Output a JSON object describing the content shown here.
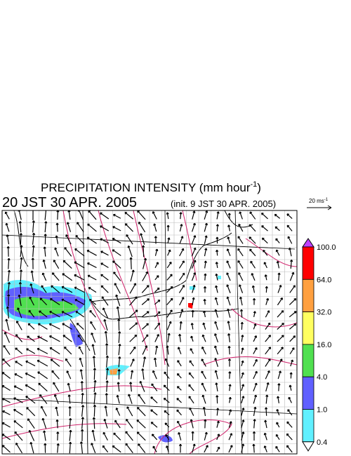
{
  "header": {
    "title": "PRECIPITATION INTENSITY (mm hour",
    "title_sup": "-1",
    "title_end": ")",
    "time": "20 JST 30 APR. 2005",
    "init": "(init. 9 JST 30 APR. 2005)"
  },
  "vector_scale": {
    "label": "20 ms",
    "label_sup": "-1"
  },
  "colorbar": {
    "levels": [
      {
        "label": "100.0",
        "color": "#ff0000"
      },
      {
        "label": "64.0",
        "color": "#ffa040"
      },
      {
        "label": "32.0",
        "color": "#ffff60"
      },
      {
        "label": "16.0",
        "color": "#50e050"
      },
      {
        "label": "4.0",
        "color": "#6060ff"
      },
      {
        "label": "1.0",
        "color": "#60f0ff"
      },
      {
        "label": "0.4",
        "color": null
      }
    ],
    "over_color": "#c040ff"
  }
}
